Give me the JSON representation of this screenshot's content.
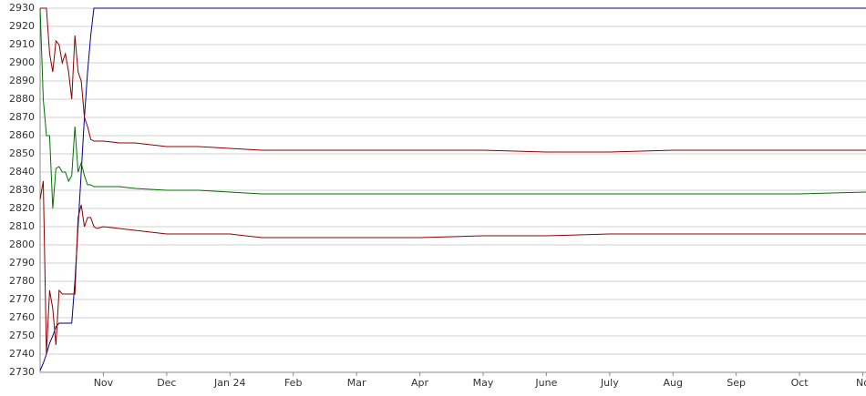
{
  "chart_data": {
    "type": "line",
    "x": [
      0,
      0.05,
      0.1,
      0.15,
      0.2,
      0.25,
      0.3,
      0.35,
      0.4,
      0.45,
      0.5,
      0.55,
      0.6,
      0.65,
      0.7,
      0.75,
      0.8,
      0.85,
      0.9,
      1,
      1.25,
      1.5,
      2,
      2.5,
      3,
      3.5,
      4,
      5,
      6,
      7,
      8,
      9,
      10,
      11,
      12,
      13.05
    ],
    "series": [
      {
        "color": "#00008b",
        "values": [
          2731,
          2735,
          2740,
          2746,
          2750,
          2755,
          2757,
          2757,
          2757,
          2757,
          2757,
          2780,
          2810,
          2840,
          2870,
          2895,
          2915,
          2930,
          2930,
          2930,
          2930,
          2930,
          2930,
          2930,
          2930,
          2930,
          2930,
          2930,
          2930,
          2930,
          2930,
          2930,
          2930,
          2930,
          2930,
          2930
        ]
      },
      {
        "color": "#8b0000",
        "values": [
          2930,
          2930,
          2930,
          2905,
          2895,
          2912,
          2910,
          2900,
          2905,
          2895,
          2880,
          2915,
          2895,
          2890,
          2870,
          2865,
          2858,
          2857,
          2857,
          2857,
          2856,
          2856,
          2854,
          2854,
          2853,
          2852,
          2852,
          2852,
          2852,
          2852,
          2851,
          2851,
          2852,
          2852,
          2852,
          2852
        ]
      },
      {
        "color": "#007000",
        "values": [
          2930,
          2880,
          2860,
          2860,
          2820,
          2842,
          2843,
          2840,
          2840,
          2835,
          2838,
          2865,
          2840,
          2845,
          2838,
          2833,
          2833,
          2832,
          2832,
          2832,
          2832,
          2831,
          2830,
          2830,
          2829,
          2828,
          2828,
          2828,
          2828,
          2828,
          2828,
          2828,
          2828,
          2828,
          2828,
          2829
        ]
      },
      {
        "color": "#8b0000",
        "values": [
          2825,
          2835,
          2740,
          2775,
          2765,
          2745,
          2775,
          2773,
          2773,
          2773,
          2773,
          2773,
          2815,
          2822,
          2810,
          2815,
          2815,
          2810,
          2809,
          2810,
          2809,
          2808,
          2806,
          2806,
          2806,
          2804,
          2804,
          2804,
          2804,
          2805,
          2805,
          2806,
          2806,
          2806,
          2806,
          2806
        ]
      }
    ],
    "xlim": [
      0,
      13.05
    ],
    "xticks": [
      {
        "value": 1,
        "label": "Nov"
      },
      {
        "value": 2,
        "label": "Dec"
      },
      {
        "value": 3,
        "label": "Jan 24"
      },
      {
        "value": 4,
        "label": "Feb"
      },
      {
        "value": 5,
        "label": "Mar"
      },
      {
        "value": 6,
        "label": "Apr"
      },
      {
        "value": 7,
        "label": "May"
      },
      {
        "value": 8,
        "label": "June"
      },
      {
        "value": 9,
        "label": "July"
      },
      {
        "value": 10,
        "label": "Aug"
      },
      {
        "value": 11,
        "label": "Sep"
      },
      {
        "value": 12,
        "label": "Oct"
      },
      {
        "value": 13,
        "label": "No"
      }
    ],
    "ylim": [
      2730,
      2930
    ],
    "yticks": [
      2730,
      2740,
      2750,
      2760,
      2770,
      2780,
      2790,
      2800,
      2810,
      2820,
      2830,
      2840,
      2850,
      2860,
      2870,
      2880,
      2890,
      2900,
      2910,
      2920,
      2930
    ],
    "grid": true
  }
}
